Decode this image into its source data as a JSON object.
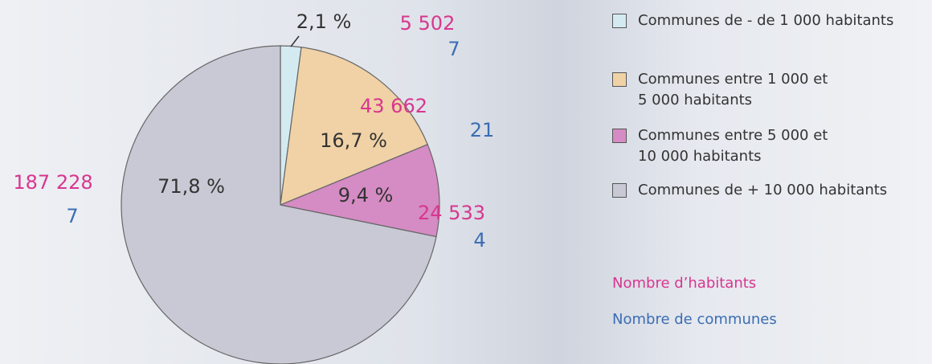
{
  "chart_data": {
    "type": "pie",
    "categories": [
      "Communes de - de 1 000 habitants",
      "Communes entre 1 000 et\n5 000 habitants",
      "Communes entre 5 000 et\n10 000 habitants",
      "Communes de + 10 000 habitants"
    ],
    "values": [
      2.1,
      16.7,
      9.4,
      71.8
    ],
    "value_labels": [
      "2,1 %",
      "16,7 %",
      "9,4 %",
      "71,8 %"
    ],
    "colors": [
      "#d3eaf1",
      "#f0d2a6",
      "#d58bc3",
      "#c9c9d6"
    ],
    "habitants": {
      "name": "Nombre d’habitants",
      "color": "#d8368f",
      "values": [
        5502,
        43662,
        24533,
        187228
      ],
      "value_labels": [
        "5 502",
        "43 662",
        "24 533",
        "187 228"
      ]
    },
    "communes": {
      "name": "Nombre de communes",
      "color": "#3b6db3",
      "values": [
        7,
        21,
        4,
        7
      ]
    }
  }
}
